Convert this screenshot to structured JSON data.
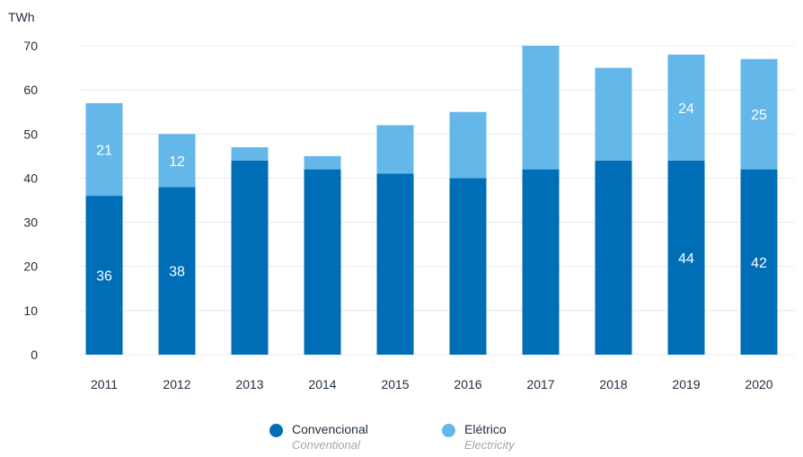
{
  "chart_data": {
    "type": "bar",
    "stacked": true,
    "unit_label": "TWh",
    "title": "",
    "xlabel": "",
    "ylabel": "TWh",
    "ylim": [
      0,
      70
    ],
    "yticks": [
      0,
      10,
      20,
      30,
      40,
      50,
      60,
      70
    ],
    "grid": true,
    "legend_position": "bottom",
    "categories": [
      "2011",
      "2012",
      "2013",
      "2014",
      "2015",
      "2016",
      "2017",
      "2018",
      "2019",
      "2020"
    ],
    "series": [
      {
        "name": "Convencional",
        "subtitle": "Conventional",
        "color": "#006db7",
        "values": [
          36,
          38,
          44,
          42,
          41,
          40,
          42,
          44,
          44,
          42
        ],
        "labels": [
          "36",
          "38",
          "",
          "",
          "",
          "",
          "",
          "",
          "44",
          "42"
        ]
      },
      {
        "name": "Elétrico",
        "subtitle": "Electricity",
        "color": "#63b8e9",
        "values": [
          21,
          12,
          3,
          3,
          11,
          15,
          28,
          21,
          24,
          25
        ],
        "labels": [
          "21",
          "12",
          "",
          "",
          "",
          "",
          "",
          "",
          "24",
          "25"
        ]
      }
    ]
  }
}
